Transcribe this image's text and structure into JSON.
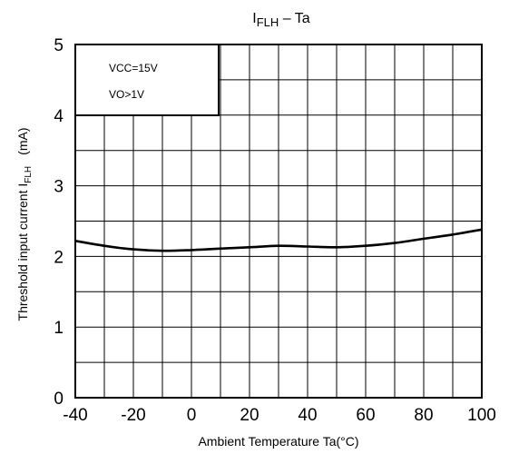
{
  "chart_data": {
    "type": "line",
    "title_main": "I",
    "title_sub": "FLH",
    "title_rest": " – Ta",
    "xlabel": "Ambient Temperature Ta(°C)",
    "ylabel_main": "Threshold input current   I",
    "ylabel_sub": "FLH",
    "ylabel_unit": "(mA)",
    "xlim": [
      -40,
      100
    ],
    "ylim": [
      0,
      5
    ],
    "x_ticks": [
      "-40",
      "-20",
      "0",
      "20",
      "40",
      "60",
      "80",
      "100"
    ],
    "y_ticks": [
      "0",
      "1",
      "2",
      "3",
      "4",
      "5"
    ],
    "grid": true,
    "annotations": [
      "VCC=15V",
      "VO>1V"
    ],
    "series": [
      {
        "x": [
          -40,
          -30,
          -20,
          -10,
          0,
          10,
          20,
          30,
          40,
          50,
          60,
          70,
          80,
          90,
          100
        ],
        "values": [
          2.22,
          2.15,
          2.1,
          2.08,
          2.09,
          2.11,
          2.13,
          2.15,
          2.14,
          2.13,
          2.15,
          2.19,
          2.25,
          2.31,
          2.38
        ]
      }
    ]
  }
}
